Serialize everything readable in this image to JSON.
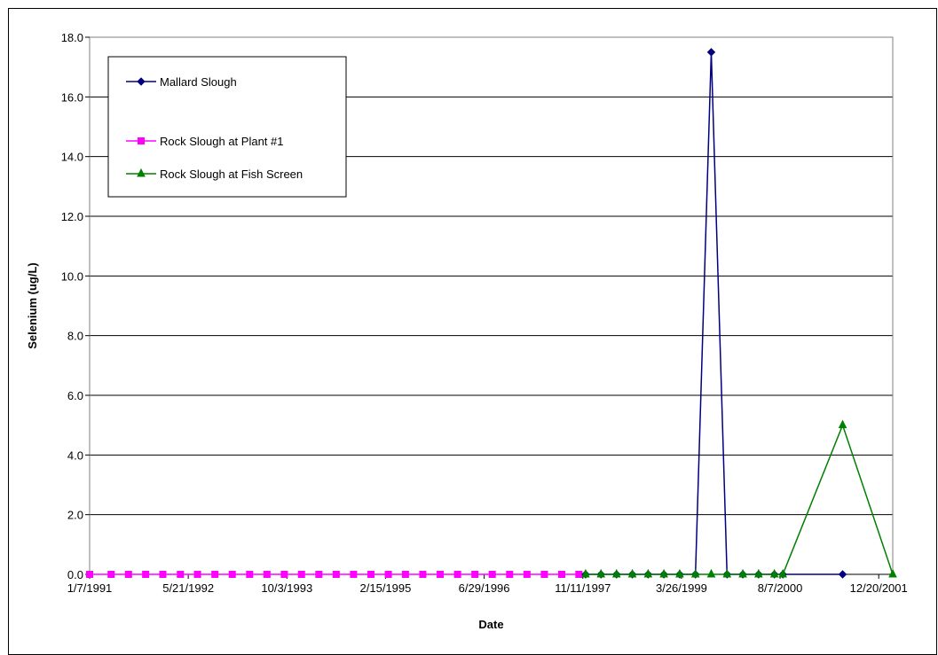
{
  "chart_data": {
    "type": "line",
    "xlabel": "Date",
    "ylabel": "Selenium (ug/L)",
    "ylim": [
      0,
      18
    ],
    "y_ticks": [
      "0.0",
      "2.0",
      "4.0",
      "6.0",
      "8.0",
      "10.0",
      "12.0",
      "14.0",
      "16.0",
      "18.0"
    ],
    "x_tick_labels": [
      "1/7/1991",
      "5/21/1992",
      "10/3/1993",
      "2/15/1995",
      "6/29/1996",
      "11/11/1997",
      "3/26/1999",
      "8/7/2000",
      "12/20/2001"
    ],
    "x_range": [
      "1/7/1991",
      "3/1/2002"
    ],
    "grid": "horizontal",
    "legend_position": "top-left",
    "series": [
      {
        "name": "Mallard Slough",
        "color": "#000080",
        "marker": "diamond",
        "x": [
          "11/25/1997",
          "2/11/1998",
          "5/1/1998",
          "7/20/1998",
          "10/8/1998",
          "12/27/1998",
          "3/17/1999",
          "6/5/1999",
          "8/24/1999",
          "11/12/1999",
          "1/31/2000",
          "4/20/2000",
          "7/9/2000",
          "8/21/2000",
          "6/20/2001"
        ],
        "y": [
          0,
          0,
          0,
          0,
          0,
          0,
          0,
          0,
          17.5,
          0,
          0,
          0,
          0,
          0,
          0
        ]
      },
      {
        "name": "Rock Slough at Plant #1",
        "color": "#FF00FF",
        "marker": "square",
        "x": [
          "1/7/1991",
          "4/26/1991",
          "7/23/1991",
          "10/18/1991",
          "1/13/1992",
          "4/11/1992",
          "7/7/1992",
          "10/3/1992",
          "12/30/1992",
          "3/28/1993",
          "6/24/1993",
          "9/20/1993",
          "12/16/1993",
          "3/14/1994",
          "6/10/1994",
          "9/6/1994",
          "12/3/1994",
          "3/1/1995",
          "5/27/1995",
          "8/23/1995",
          "11/19/1995",
          "2/15/1996",
          "5/13/1996",
          "8/9/1996",
          "11/5/1996",
          "2/1/1997",
          "4/30/1997",
          "7/27/1997",
          "10/22/1997"
        ],
        "y": [
          0,
          0,
          0,
          0,
          0,
          0,
          0,
          0,
          0,
          0,
          0,
          0,
          0,
          0,
          0,
          0,
          0,
          0,
          0,
          0,
          0,
          0,
          0,
          0,
          0,
          0,
          0,
          0,
          0
        ]
      },
      {
        "name": "Rock Slough at Fish Screen",
        "color": "#008000",
        "marker": "triangle",
        "x": [
          "11/25/1997",
          "2/11/1998",
          "5/1/1998",
          "7/20/1998",
          "10/8/1998",
          "12/27/1998",
          "3/17/1999",
          "6/5/1999",
          "8/24/1999",
          "11/12/1999",
          "1/31/2000",
          "4/20/2000",
          "7/9/2000",
          "8/21/2000",
          "6/20/2001",
          "3/1/2002"
        ],
        "y": [
          0,
          0,
          0,
          0,
          0,
          0,
          0,
          0,
          0,
          0,
          0,
          0,
          0,
          0,
          5.0,
          0
        ]
      }
    ]
  }
}
